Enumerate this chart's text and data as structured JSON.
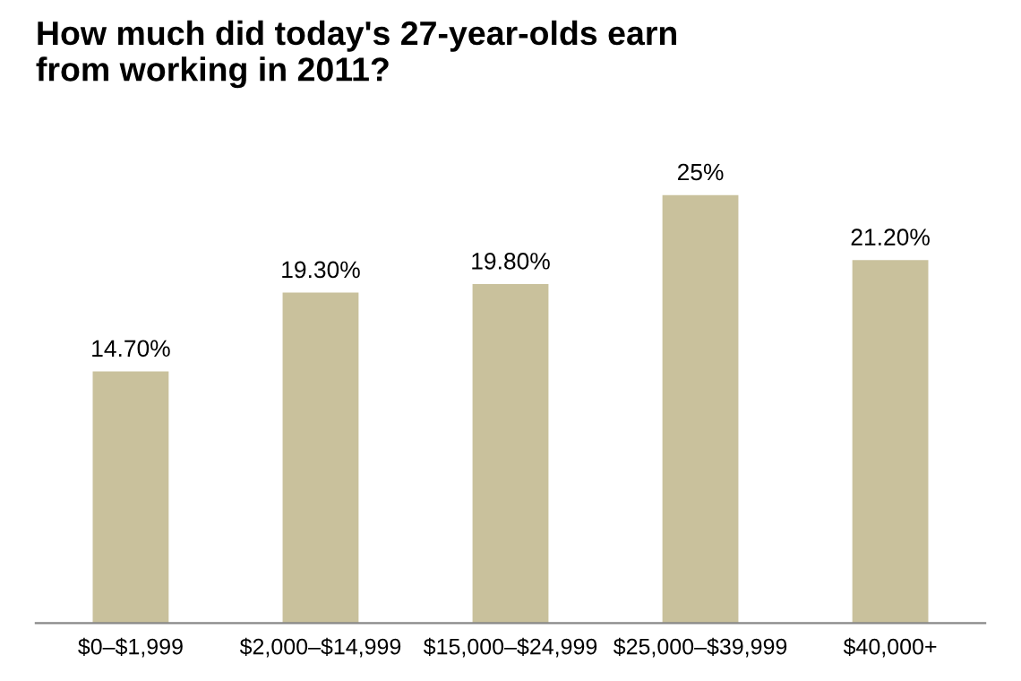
{
  "chart_data": {
    "type": "bar",
    "title": "How much did today's 27-year-olds earn\nfrom working in 2011?",
    "categories": [
      "$0–$1,999",
      "$2,000–$14,999",
      "$15,000–$24,999",
      "$25,000–$39,999",
      "$40,000+"
    ],
    "values": [
      14.7,
      19.3,
      19.8,
      25,
      21.2
    ],
    "value_labels": [
      "14.70%",
      "19.30%",
      "19.80%",
      "25%",
      "21.20%"
    ],
    "color": "#c9c19c",
    "grid": false,
    "legend": false
  }
}
